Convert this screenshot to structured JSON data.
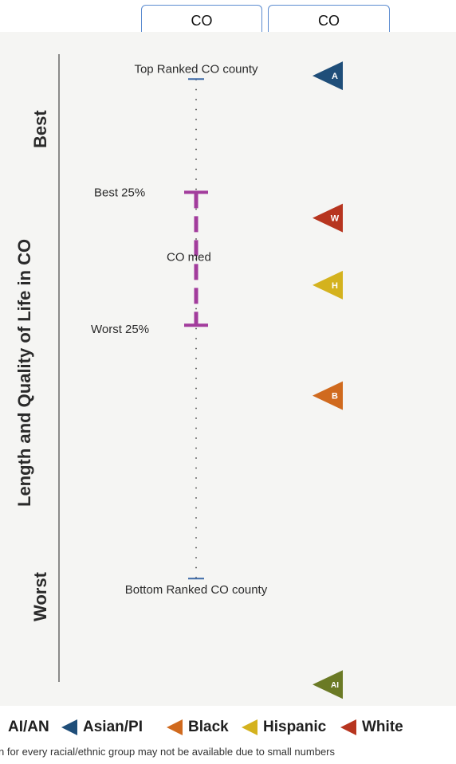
{
  "tabs": [
    "CO",
    "CO"
  ],
  "chart_data": {
    "type": "scatter",
    "ylabel": "Length and Quality of Life in CO",
    "axis_ends": {
      "top": "Best",
      "bottom": "Worst"
    },
    "reference_scale": {
      "top_label": "Top Ranked CO county",
      "best25_label": "Best 25%",
      "median_label": "CO med",
      "worst25_label": "Worst 25%",
      "bottom_label": "Bottom Ranked CO county",
      "positions": {
        "top": 0.05,
        "best25": 0.222,
        "median": 0.32,
        "worst25": 0.424,
        "bottom": 0.809
      }
    },
    "groups": [
      {
        "name": "Asian/PI",
        "letter": "A",
        "color": "#1f4e79",
        "value": 0.045
      },
      {
        "name": "White",
        "letter": "W",
        "color": "#b7351f",
        "value": 0.261
      },
      {
        "name": "Hispanic",
        "letter": "H",
        "color": "#d4b21e",
        "value": 0.363
      },
      {
        "name": "Black",
        "letter": "B",
        "color": "#d06a1e",
        "value": 0.531
      },
      {
        "name": "AI/AN",
        "letter": "AI",
        "color": "#6b7a25",
        "value": 0.97
      }
    ],
    "value_scale": "0 = Best (top), 1 = Worst (bottom)",
    "grid": false
  },
  "legend": [
    {
      "label": "AI/AN",
      "color": "#6b7a25"
    },
    {
      "label": "Asian/PI",
      "color": "#1f4e79"
    },
    {
      "label": "Black",
      "color": "#d06a1e"
    },
    {
      "label": "Hispanic",
      "color": "#d4b21e"
    },
    {
      "label": "White",
      "color": "#b7351f"
    }
  ],
  "footnote": "n for every racial/ethnic group may not be available due to small numbers"
}
